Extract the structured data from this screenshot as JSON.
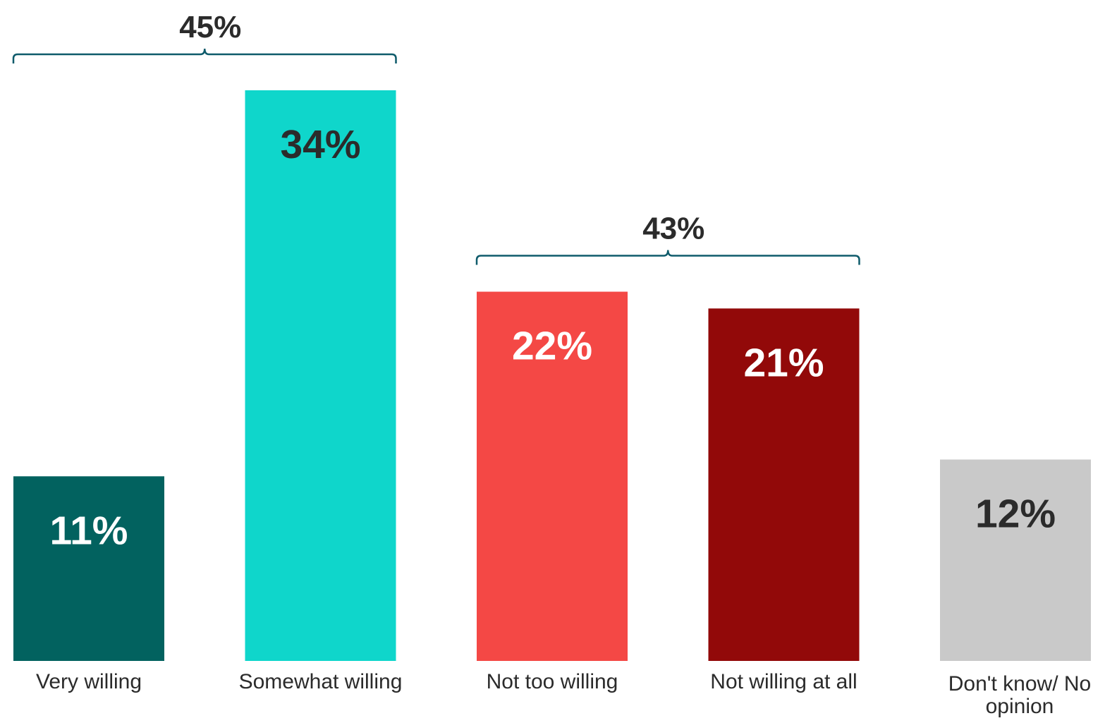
{
  "chart_data": {
    "type": "bar",
    "categories": [
      "Very willing",
      "Somewhat willing",
      "Not too willing",
      "Not willing at all",
      "Don't know/ No opinion"
    ],
    "values": [
      11,
      34,
      22,
      21,
      12
    ],
    "value_labels": [
      "11%",
      "34%",
      "22%",
      "21%",
      "12%"
    ],
    "colors": [
      "#02625f",
      "#0fd6cb",
      "#f44845",
      "#920909",
      "#c9c9c9"
    ],
    "label_colors": [
      "#ffffff",
      "#2b2b2b",
      "#ffffff",
      "#ffffff",
      "#2b2b2b"
    ],
    "groups": [
      {
        "label": "45%",
        "from": 0,
        "to": 1
      },
      {
        "label": "43%",
        "from": 2,
        "to": 3
      }
    ],
    "xlabel": "",
    "ylabel": "",
    "ylim": [
      0,
      34
    ],
    "grid": false,
    "legend": "none"
  }
}
